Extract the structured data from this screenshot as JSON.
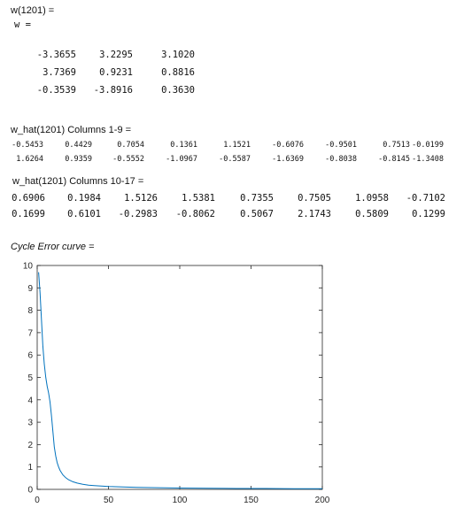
{
  "w_block": {
    "header": "w(1201) =",
    "var_line": "w =",
    "rows": [
      [
        "-3.3655",
        "3.2295",
        "3.1020"
      ],
      [
        "3.7369",
        "0.9231",
        "0.8816"
      ],
      [
        "-0.3539",
        "-3.8916",
        "0.3630"
      ]
    ]
  },
  "what_block1": {
    "header": "w_hat(1201) Columns 1-9 =",
    "rows": [
      [
        "-0.5453",
        "0.4429",
        "0.7054",
        "0.1361",
        "1.1521",
        "-0.6076",
        "-0.9501",
        "0.7513",
        "-0.0199"
      ],
      [
        "1.6264",
        "0.9359",
        "-0.5552",
        "-1.0967",
        "-0.5587",
        "-1.6369",
        "-0.8038",
        "-0.8145",
        "-1.3408"
      ]
    ]
  },
  "what_block2": {
    "header": "w_hat(1201) Columns 10-17 =",
    "rows": [
      [
        "0.6906",
        "0.1984",
        "1.5126",
        "1.5381",
        "0.7355",
        "0.7505",
        "1.0958",
        "-0.7102"
      ],
      [
        "0.1699",
        "0.6101",
        "-0.2983",
        "-0.8062",
        "0.5067",
        "2.1743",
        "0.5809",
        "0.1299"
      ]
    ]
  },
  "curve_label": "Cycle Error curve =",
  "chart_data": {
    "type": "line",
    "xlim": [
      0,
      200
    ],
    "ylim": [
      0,
      10
    ],
    "xticks": [
      "0",
      "50",
      "100",
      "150",
      "200"
    ],
    "yticks": [
      "0",
      "1",
      "2",
      "3",
      "4",
      "5",
      "6",
      "7",
      "8",
      "9",
      "10"
    ],
    "line_color": "#0072BD",
    "grid": false,
    "series": [
      {
        "x": [
          1,
          2,
          3,
          4,
          5,
          6,
          7,
          8,
          9,
          10,
          11,
          12,
          13,
          14,
          15,
          16,
          18,
          20,
          22,
          25,
          28,
          32,
          36,
          40,
          45,
          50,
          60,
          70,
          80,
          90,
          100,
          120,
          140,
          160,
          180,
          200
        ],
        "y": [
          9.7,
          8.8,
          7.6,
          6.4,
          5.6,
          5.0,
          4.6,
          4.3,
          3.9,
          3.3,
          2.6,
          1.9,
          1.5,
          1.2,
          1.0,
          0.85,
          0.65,
          0.52,
          0.43,
          0.34,
          0.28,
          0.23,
          0.19,
          0.17,
          0.15,
          0.13,
          0.11,
          0.09,
          0.08,
          0.07,
          0.06,
          0.05,
          0.04,
          0.04,
          0.03,
          0.03
        ]
      }
    ]
  }
}
